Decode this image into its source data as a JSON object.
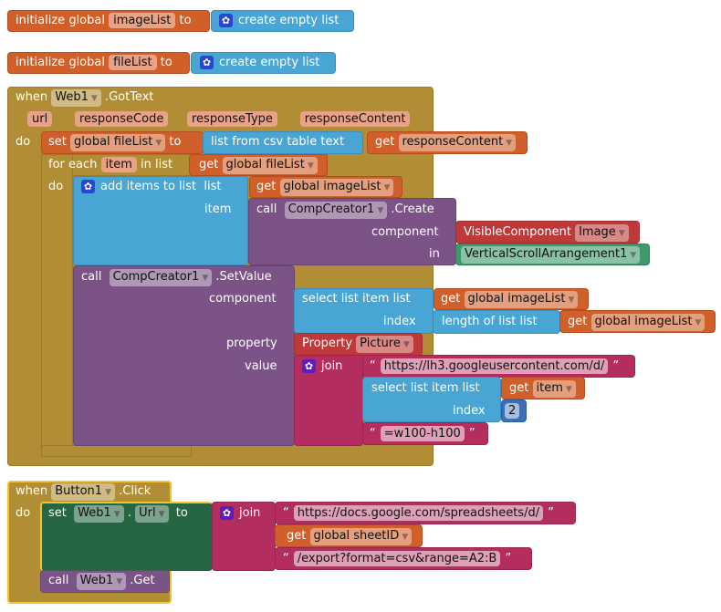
{
  "globals": [
    {
      "init": "initialize global",
      "name": "imageList",
      "to": "to",
      "value": "create empty list"
    },
    {
      "init": "initialize global",
      "name": "fileList",
      "to": "to",
      "value": "create empty list"
    }
  ],
  "gottext": {
    "when": "when",
    "component": "Web1",
    "event": ".GotText",
    "params": [
      "url",
      "responseCode",
      "responseType",
      "responseContent"
    ],
    "do": "do",
    "set": "set",
    "set_var": "global fileList",
    "to": "to",
    "csv": "list from csv table  text",
    "get": "get",
    "get_var": "responseContent",
    "foreach": "for each",
    "item": "item",
    "inlist": "in list",
    "foreach_var": "global fileList",
    "do2": "do",
    "add": "add items to list",
    "list": "list",
    "add_var": "global imageList",
    "item_label": "item",
    "call": "call",
    "creator": "CompCreator1",
    "create": ".Create",
    "component_label": "component",
    "visible": "VisibleComponent",
    "visible_type": "Image",
    "in": "in",
    "arrangement": "VerticalScrollArrangement1",
    "setvalue": ".SetValue",
    "select": "select list item  list",
    "select_var": "global imageList",
    "index": "index",
    "length": "length of list  list",
    "length_var": "global imageList",
    "property_label": "property",
    "property": "Property",
    "property_value": "Picture",
    "value_label": "value",
    "join": "join",
    "str1": "https://lh3.googleusercontent.com/d/",
    "select2": "select list item  list",
    "item_var": "item",
    "index2": "index",
    "num": "2",
    "str2": "=w100-h100"
  },
  "click": {
    "when": "when",
    "component": "Button1",
    "event": ".Click",
    "do": "do",
    "set": "set",
    "comp": "Web1",
    "dot": ".",
    "prop": "Url",
    "to": "to",
    "join": "join",
    "str1": "https://docs.google.com/spreadsheets/d/",
    "get": "get",
    "var": "global sheetID",
    "str2": "/export?format=csv&range=A2:B",
    "call": "call",
    "call_comp": "Web1",
    "method": ".Get"
  }
}
